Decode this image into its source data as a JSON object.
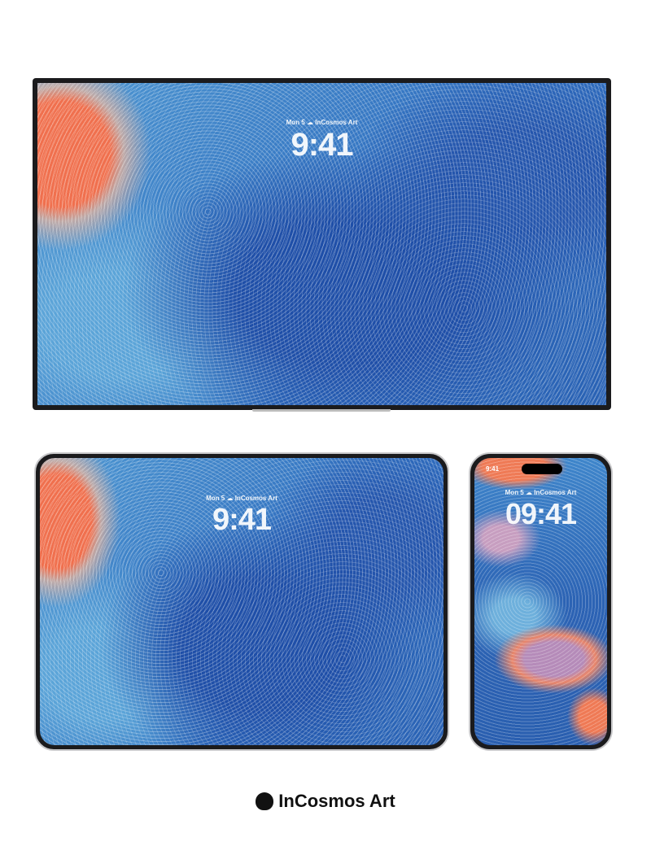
{
  "monitor": {
    "date": "Mon 5",
    "label": "InCosmos Art",
    "time": "9:41"
  },
  "tablet": {
    "date": "Mon 5",
    "label": "InCosmos Art",
    "time": "9:41"
  },
  "phone": {
    "status_time": "9:41",
    "date": "Mon 5",
    "label": "InCosmos Art",
    "time": "09:41"
  },
  "footer": {
    "brand": "InCosmos Art"
  }
}
